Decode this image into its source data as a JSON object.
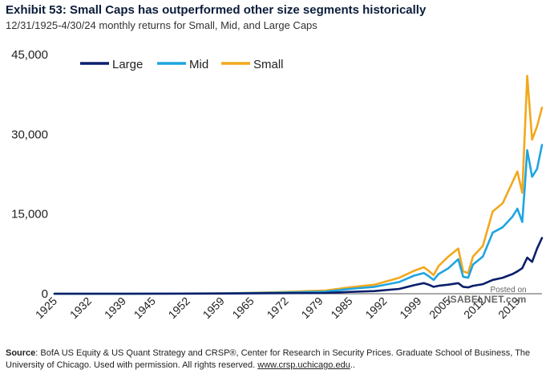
{
  "header": {
    "title": "Exhibit 53: Small Caps has outperformed other size segments historically",
    "subtitle": "12/31/1925-4/30/24 monthly returns for Small, Mid, and Large Caps"
  },
  "source": {
    "label": "Source",
    "text": ": BofA US Equity & US Quant Strategy and CRSP®, Center for Research in Security Prices. Graduate School of Business, The University of Chicago.  Used with permission. All rights reserved.",
    "link": "www.crsp.uchicago.edu",
    "tail": ".."
  },
  "watermark": {
    "posted": "Posted on",
    "site": "ISABELNET.com"
  },
  "colors": {
    "large": "#0a1f6b",
    "mid": "#1ea5e0",
    "small": "#f2a81d"
  },
  "chart_data": {
    "type": "line",
    "title": "Exhibit 53: Small Caps has outperformed other size segments historically",
    "xlabel": "",
    "ylabel": "",
    "ylim": [
      0,
      45000
    ],
    "xlim": [
      1925,
      2024
    ],
    "yticks": [
      0,
      15000,
      30000,
      45000
    ],
    "ytick_labels": [
      "0",
      "15,000",
      "30,000",
      "45,000"
    ],
    "xtick_labels": [
      "1925",
      "1932",
      "1939",
      "1945",
      "1952",
      "1959",
      "1965",
      "1972",
      "1979",
      "1985",
      "1992",
      "1999",
      "2005",
      "2012",
      "2019"
    ],
    "xtick_years": [
      1925,
      1932,
      1939,
      1945,
      1952,
      1959,
      1965,
      1972,
      1979,
      1985,
      1992,
      1999,
      2005,
      2012,
      2019
    ],
    "legend_position": "top-left",
    "series": [
      {
        "name": "Large",
        "x": [
          1925,
          1940,
          1960,
          1970,
          1980,
          1985,
          1990,
          1995,
          1998,
          2000,
          2001,
          2002,
          2003,
          2005,
          2007,
          2008,
          2009,
          2010,
          2012,
          2014,
          2016,
          2018,
          2019,
          2020,
          2021,
          2022,
          2023,
          2024
        ],
        "values": [
          0,
          5,
          40,
          100,
          150,
          350,
          500,
          900,
          1600,
          2000,
          1700,
          1300,
          1500,
          1700,
          2000,
          1300,
          1200,
          1500,
          1800,
          2600,
          3000,
          3700,
          4200,
          4800,
          6800,
          6000,
          8500,
          10500
        ]
      },
      {
        "name": "Mid",
        "x": [
          1925,
          1940,
          1960,
          1970,
          1980,
          1985,
          1990,
          1995,
          1998,
          2000,
          2001,
          2002,
          2003,
          2005,
          2007,
          2008,
          2009,
          2010,
          2012,
          2014,
          2016,
          2018,
          2019,
          2020,
          2020.5,
          2021,
          2022,
          2023,
          2024
        ],
        "values": [
          0,
          5,
          60,
          200,
          400,
          900,
          1300,
          2200,
          3400,
          3900,
          3300,
          2600,
          3700,
          4800,
          6500,
          3200,
          3000,
          5500,
          7000,
          11500,
          12500,
          14500,
          16000,
          13500,
          20000,
          27000,
          22000,
          23500,
          28000
        ]
      },
      {
        "name": "Small",
        "x": [
          1925,
          1940,
          1960,
          1970,
          1980,
          1985,
          1990,
          1995,
          1998,
          2000,
          2001,
          2002,
          2003,
          2005,
          2007,
          2008,
          2009,
          2010,
          2012,
          2014,
          2016,
          2018,
          2019,
          2020,
          2020.5,
          2021,
          2022,
          2023,
          2024
        ],
        "values": [
          0,
          5,
          80,
          300,
          600,
          1200,
          1700,
          3000,
          4300,
          5000,
          4300,
          3500,
          5200,
          7000,
          8500,
          4200,
          3900,
          7000,
          9000,
          15500,
          17000,
          21000,
          23000,
          19000,
          30000,
          41000,
          29000,
          31500,
          35000
        ]
      }
    ]
  }
}
